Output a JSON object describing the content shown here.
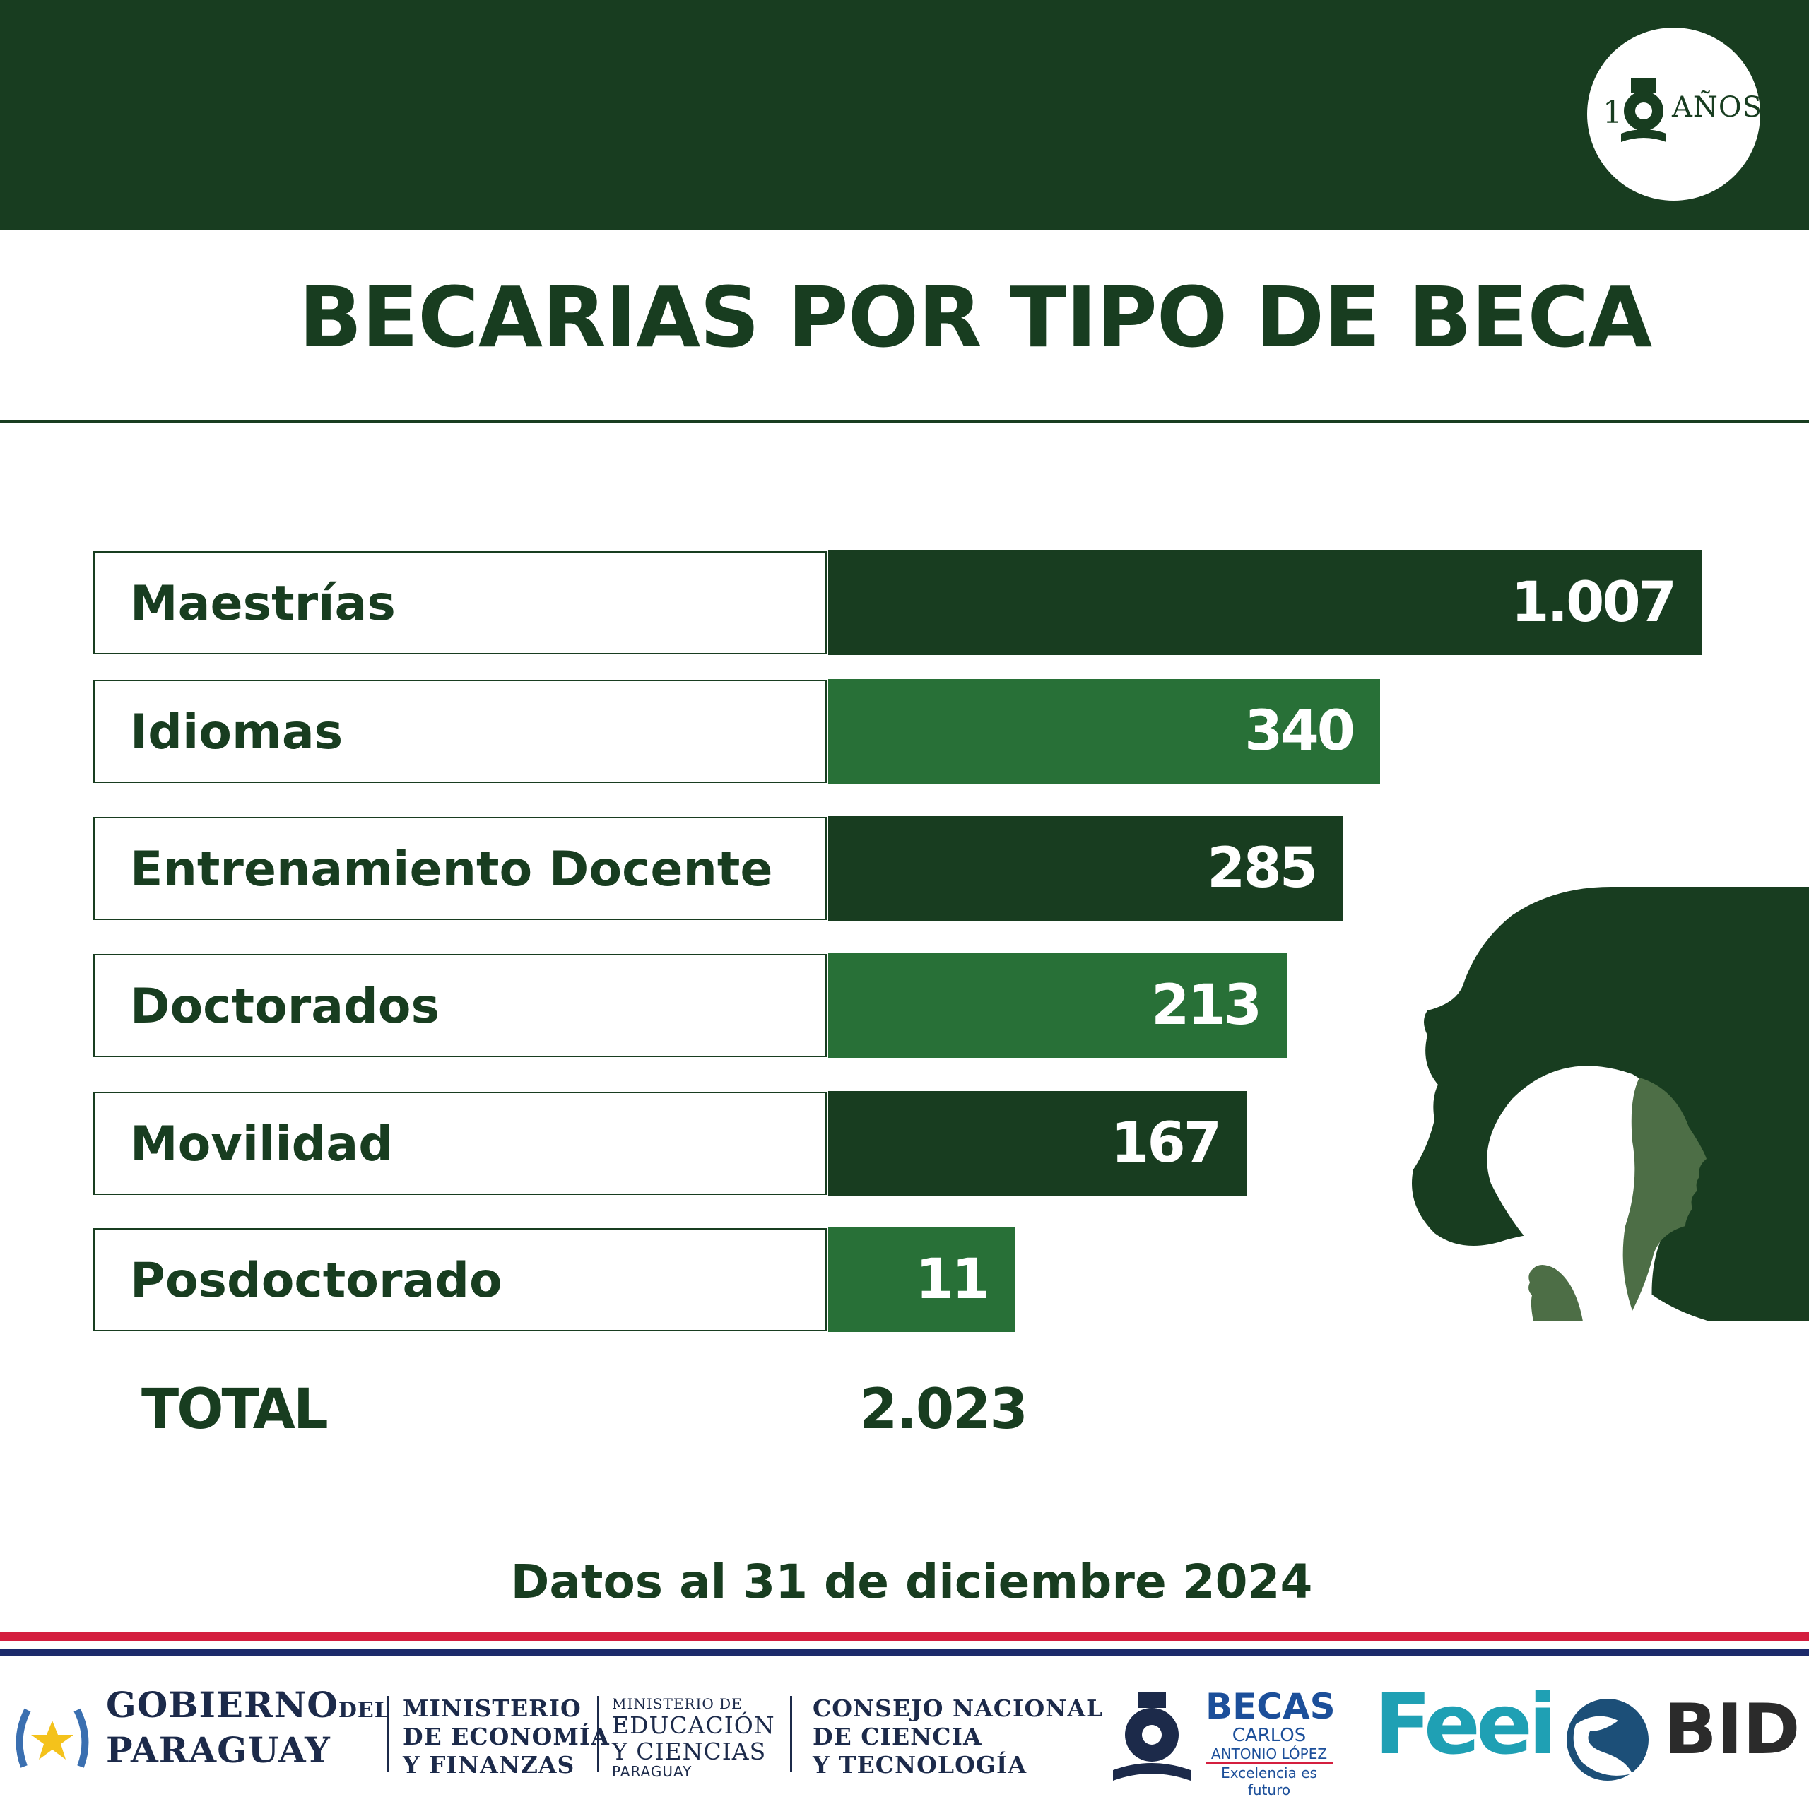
{
  "header": {
    "badge_text": "AÑOS",
    "badge_number_prefix": "1"
  },
  "title": "BECARIAS POR TIPO DE BECA",
  "colors": {
    "dark_green": "#183d20",
    "mid_green": "#287037",
    "light_green": "#4d6e46",
    "flag_red": "#d41f3f",
    "flag_blue": "#1c2a6b",
    "feei_teal": "#1fa0b4",
    "bid_blue": "#1c4f78"
  },
  "chart_data": {
    "type": "bar",
    "orientation": "horizontal",
    "categories": [
      "Maestrías",
      "Idiomas",
      "Entrenamiento Docente",
      "Doctorados",
      "Movilidad",
      "Posdoctorado"
    ],
    "values": [
      1007,
      340,
      285,
      213,
      167,
      11
    ],
    "value_labels": [
      "1.007",
      "340",
      "285",
      "213",
      "167",
      "11"
    ],
    "bar_colors": [
      "#183d20",
      "#287037",
      "#183d20",
      "#287037",
      "#183d20",
      "#287037"
    ],
    "total_label": "TOTAL",
    "total_value": "2.023"
  },
  "footnote": "Datos al 31 de diciembre 2024",
  "footer": {
    "gobierno_line1": "GOBIERNO",
    "gobierno_del": "DEL",
    "gobierno_line2": "PARAGUAY",
    "mef_lines": [
      "MINISTERIO",
      "DE ECONOMÍA",
      "Y FINANZAS"
    ],
    "mec_small": "MINISTERIO DE",
    "mec_lines": [
      "EDUCACIÓN",
      "Y CIENCIAS"
    ],
    "mec_country": "PARAGUAY",
    "conacyt_lines": [
      "CONSEJO NACIONAL",
      "DE CIENCIA",
      "Y TECNOLOGÍA"
    ],
    "becas_title": "BECAS",
    "becas_sub1": "CARLOS",
    "becas_sub2": "ANTONIO LÓPEZ",
    "becas_tagline": "Excelencia es futuro",
    "feei": "Feei",
    "bid": "BID"
  }
}
